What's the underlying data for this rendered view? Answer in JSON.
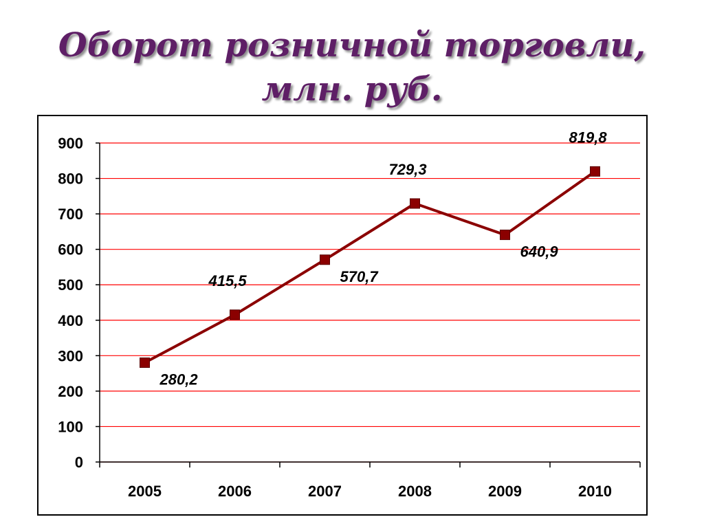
{
  "title": {
    "line1": "Оборот розничной торговли,",
    "line2": "млн. руб."
  },
  "chart_data": {
    "type": "line",
    "title": "Оборот розничной торговли, млн. руб.",
    "categories": [
      "2005",
      "2006",
      "2007",
      "2008",
      "2009",
      "2010"
    ],
    "series": [
      {
        "values": [
          280.2,
          415.5,
          570.7,
          729.3,
          640.9,
          819.8
        ],
        "labels": [
          "280,2",
          "415,5",
          "570,7",
          "729,3",
          "640,9",
          "819,8"
        ],
        "color": "#8b0000"
      }
    ],
    "ylim": [
      0,
      900
    ],
    "yticks": [
      0,
      100,
      200,
      300,
      400,
      500,
      600,
      700,
      800,
      900
    ],
    "grid": true,
    "grid_color": "#ff0000",
    "marker": "square",
    "legend": "none"
  }
}
